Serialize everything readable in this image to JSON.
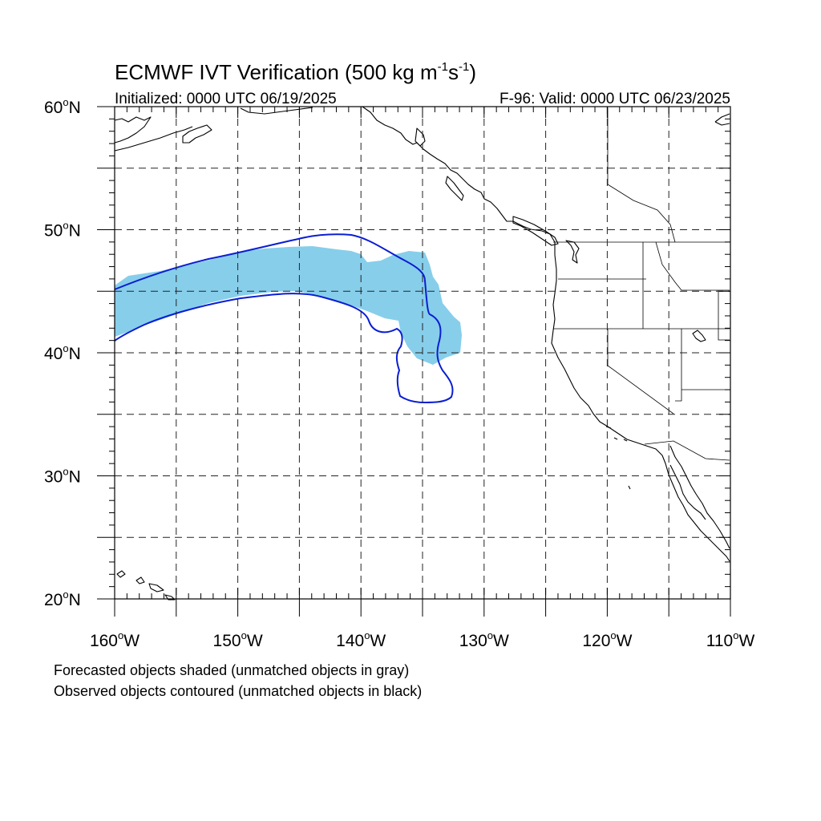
{
  "title": "ECMWF IVT Verification",
  "title_units_prefix": "(500 kg m",
  "title_exp1": "-1",
  "title_units_mid": "s",
  "title_exp2": "-1",
  "title_units_suffix": ")",
  "initialized": "Initialized: 0000 UTC 06/19/2025",
  "valid": "F-96: Valid: 0000 UTC 06/23/2025",
  "lat_labels": [
    "60",
    "50",
    "40",
    "30",
    "20"
  ],
  "lat_suffix": "N",
  "lon_labels": [
    "160",
    "150",
    "140",
    "130",
    "120",
    "110"
  ],
  "lon_suffix": "W",
  "degree_symbol": "o",
  "note_forecast": "Forecasted objects shaded (unmatched objects in gray)",
  "note_observed": "Observed objects contoured (unmatched objects in black)",
  "extent": {
    "lon_min": -160,
    "lon_max": -110,
    "lat_min": 20,
    "lat_max": 60
  },
  "colors": {
    "forecast_fill": "#87ceeb",
    "observed_contour": "#0a1ed2",
    "coastline": "#000000"
  }
}
